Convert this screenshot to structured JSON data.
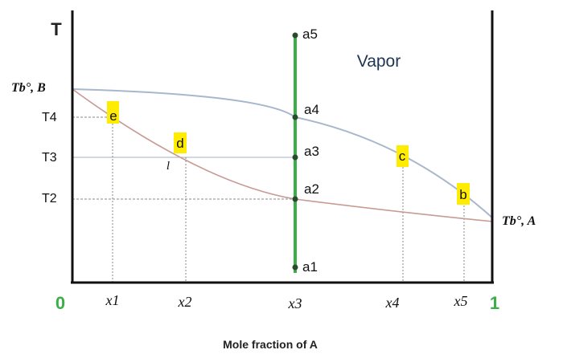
{
  "axis": {
    "y_label": "T",
    "x_label": "Mole fraction of A",
    "x_start": "0",
    "x_end": "1"
  },
  "temperatures": {
    "tb_b": "Tb°, B",
    "tb_a": "Tb°, A",
    "t4": "T4",
    "t3": "T3",
    "t2": "T2"
  },
  "compositions": [
    "x1",
    "x2",
    "x3",
    "x4",
    "x5"
  ],
  "region_label": "Vapor",
  "isopleth_points": [
    "a5",
    "a4",
    "a3",
    "a2",
    "a1"
  ],
  "curve_points": [
    "e",
    "d",
    "l",
    "c",
    "b"
  ],
  "colors": {
    "axis": "#111111",
    "vapor_curve": "#a7b7cc",
    "liquid_curve": "#c79a94",
    "isopleth": "#3cae48",
    "highlight": "#ffec00",
    "guide": "#888888"
  }
}
